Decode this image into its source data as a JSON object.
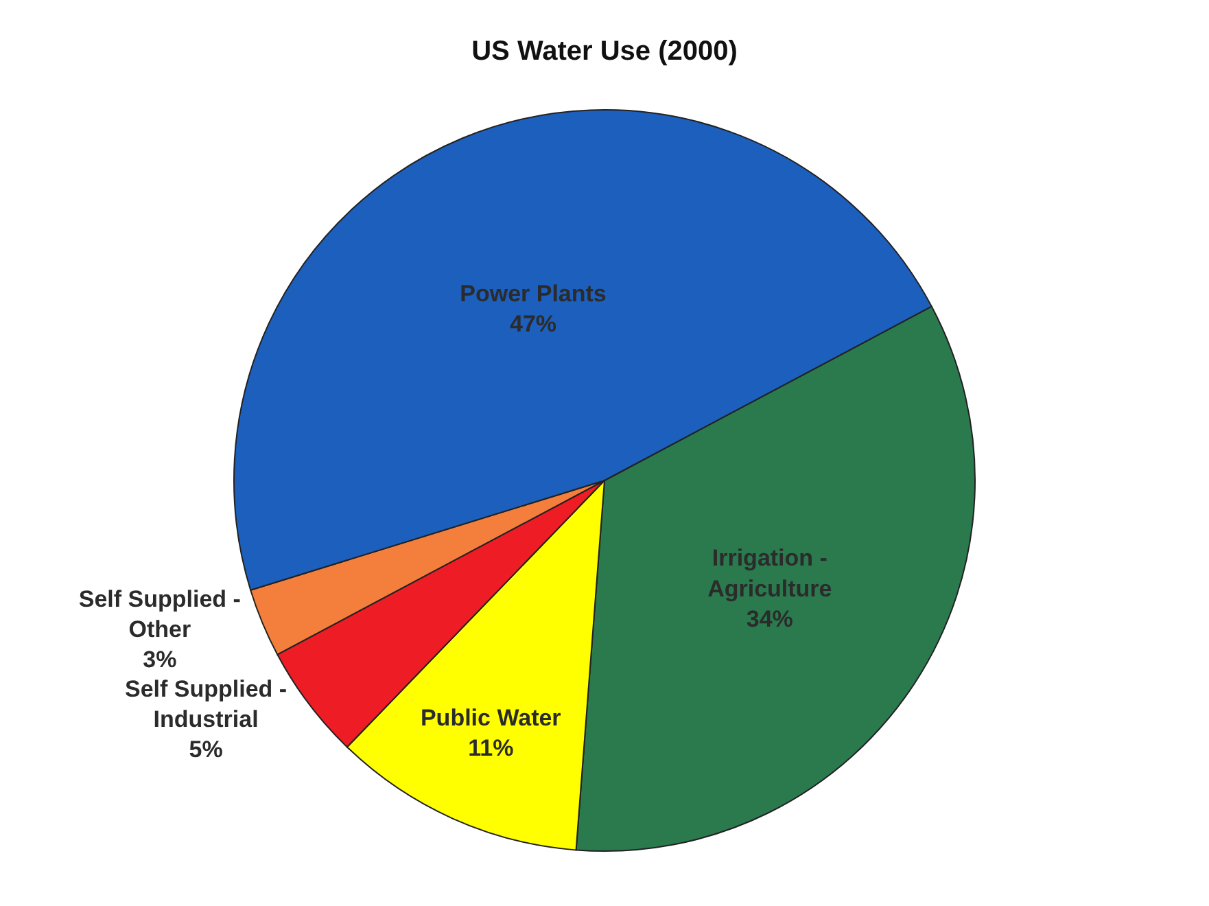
{
  "chart_data": {
    "type": "pie",
    "title": "US Water Use (2000)",
    "categories": [
      "Irrigation - Agriculture",
      "Public Water",
      "Self Supplied - Industrial",
      "Self Supplied - Other",
      "Power Plants"
    ],
    "values": [
      34,
      11,
      5,
      3,
      47
    ],
    "value_labels": [
      "34%",
      "11%",
      "5%",
      "3%",
      "47%"
    ],
    "colors": [
      "#2a7a4e",
      "#ffff00",
      "#ee1c25",
      "#f47f3c",
      "#1c5fbd"
    ],
    "legend": false
  }
}
